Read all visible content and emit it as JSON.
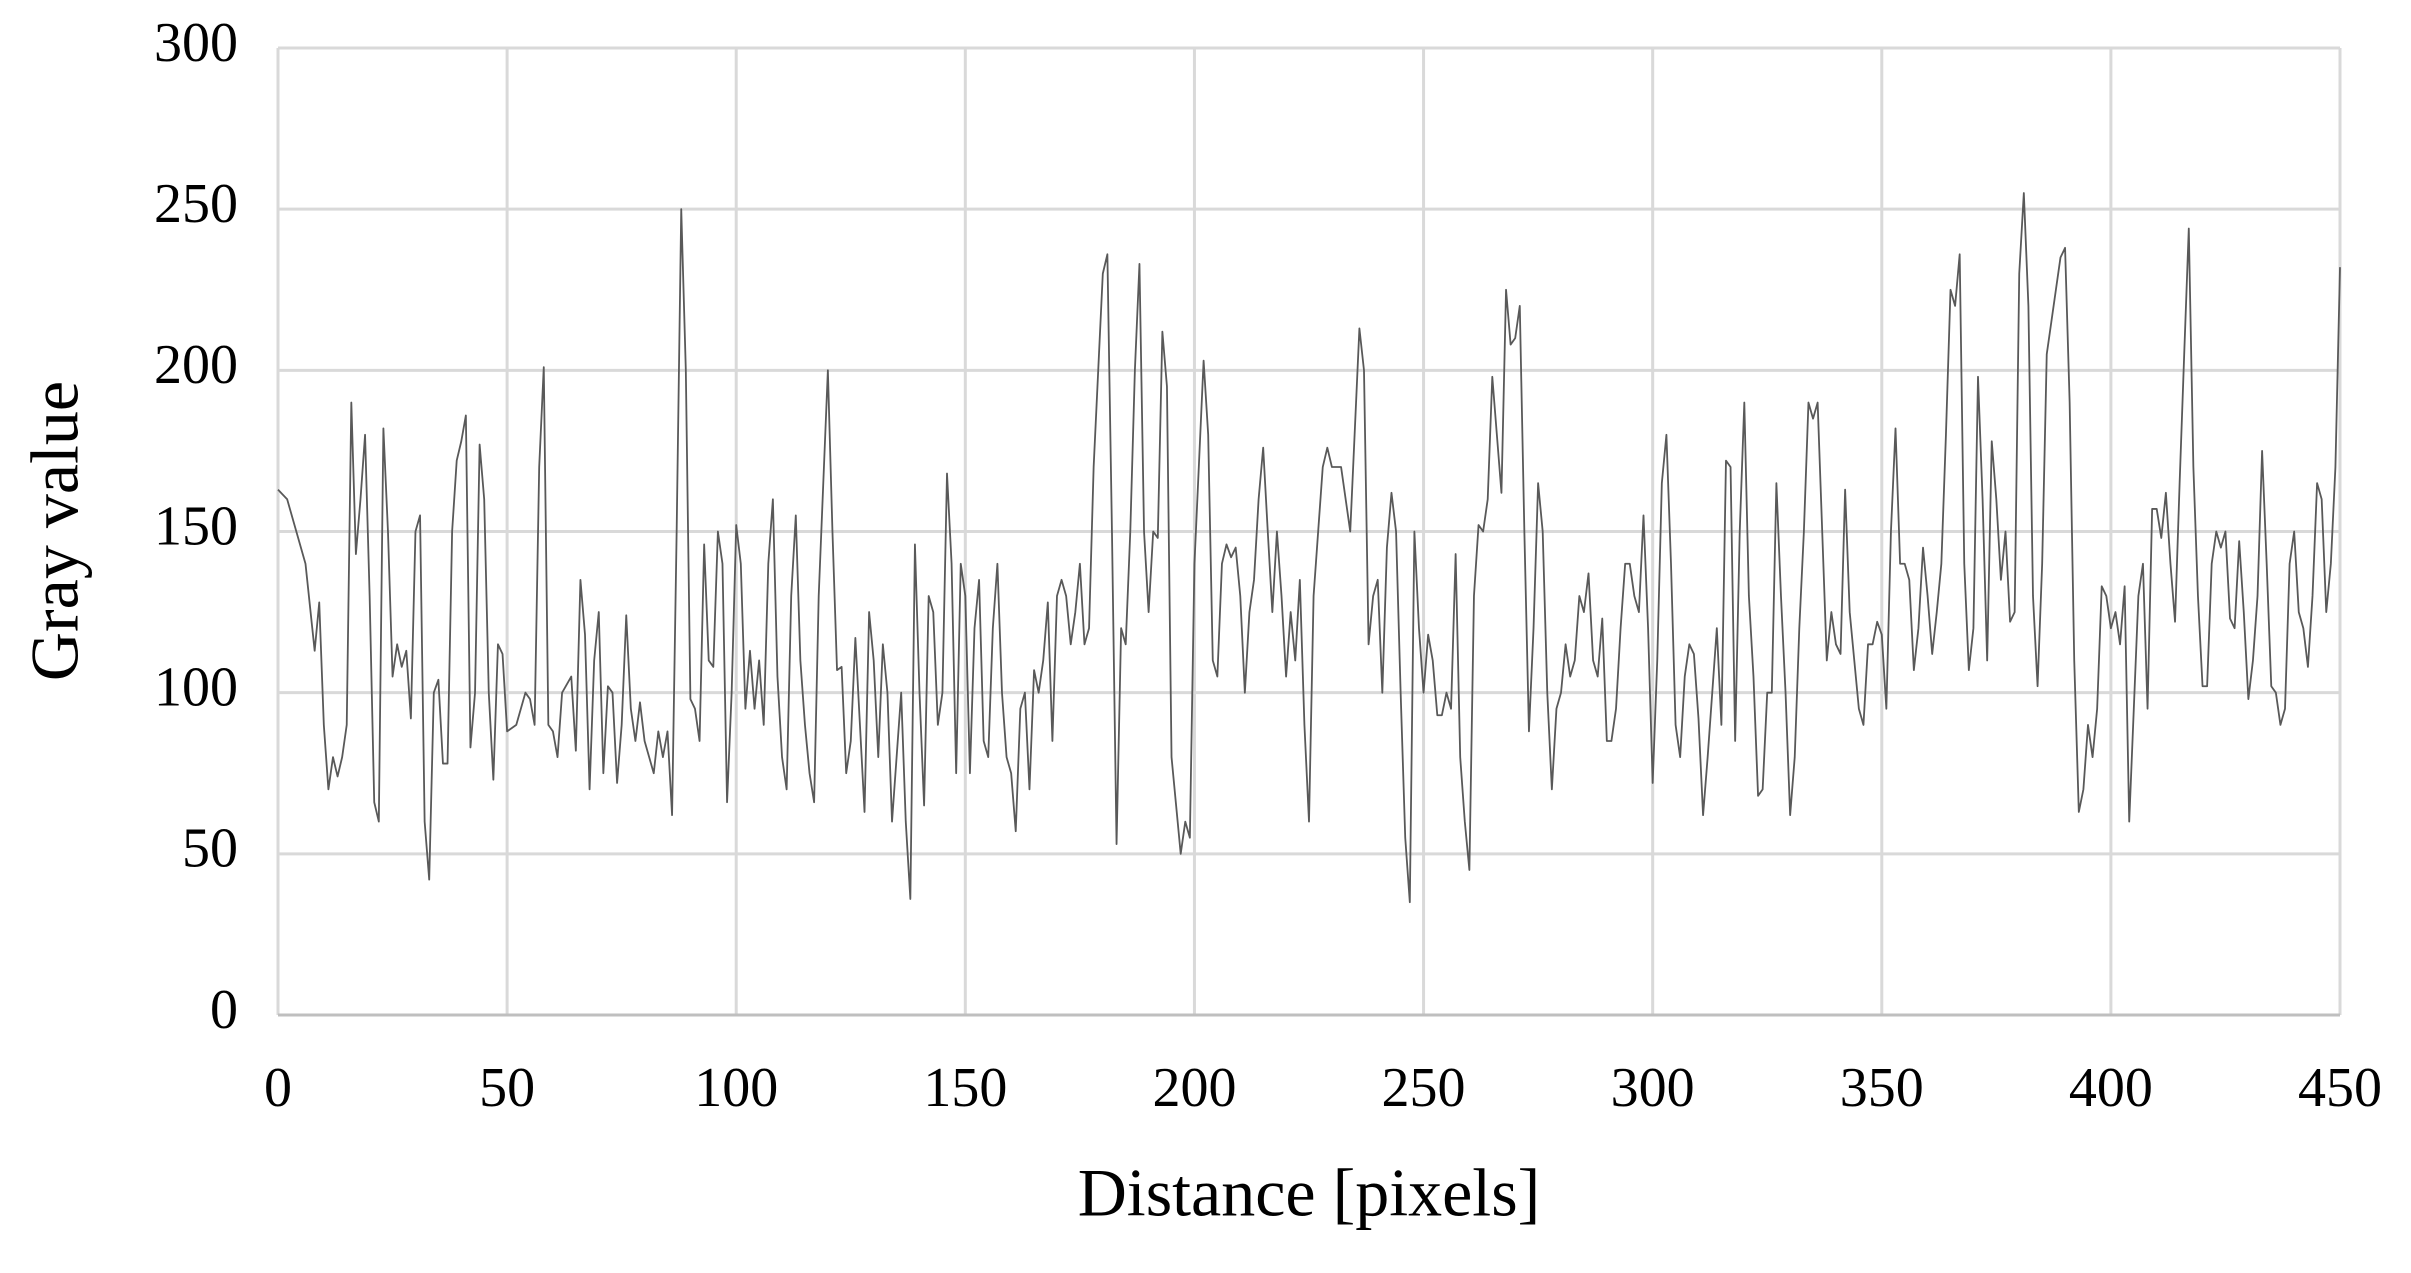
{
  "chart_data": {
    "type": "line",
    "x_label": "Distance [pixels]",
    "y_label": "Gray value",
    "color": "#595959",
    "grid": true,
    "xlim": [
      0,
      450
    ],
    "xticks": [
      0,
      50,
      100,
      150,
      200,
      250,
      300,
      350,
      400,
      450
    ],
    "ylim": [
      0,
      300
    ],
    "yticks": [
      0,
      50,
      100,
      150,
      200,
      250,
      300
    ],
    "x": [
      0,
      2,
      4,
      6,
      8,
      9,
      10,
      11,
      12,
      13,
      14,
      15,
      16,
      17,
      18,
      19,
      20,
      21,
      22,
      23,
      24,
      25,
      26,
      27,
      28,
      29,
      30,
      31,
      32,
      33,
      34,
      35,
      36,
      37,
      38,
      39,
      40,
      41,
      42,
      43,
      44,
      45,
      46,
      47,
      48,
      49,
      50,
      52,
      54,
      55,
      56,
      57,
      58,
      59,
      60,
      61,
      62,
      64,
      65,
      66,
      67,
      68,
      69,
      70,
      71,
      72,
      73,
      74,
      75,
      76,
      77,
      78,
      79,
      80,
      81,
      82,
      83,
      84,
      85,
      86,
      87,
      88,
      89,
      90,
      91,
      92,
      93,
      94,
      95,
      96,
      97,
      98,
      99,
      100,
      101,
      102,
      103,
      104,
      105,
      106,
      107,
      108,
      109,
      110,
      111,
      112,
      113,
      114,
      115,
      116,
      117,
      118,
      119,
      120,
      121,
      122,
      123,
      124,
      125,
      126,
      127,
      128,
      129,
      130,
      131,
      132,
      133,
      134,
      136,
      137,
      138,
      139,
      140,
      141,
      142,
      143,
      144,
      145,
      146,
      147,
      148,
      149,
      150,
      151,
      152,
      153,
      154,
      155,
      156,
      157,
      158,
      159,
      160,
      161,
      162,
      163,
      164,
      165,
      166,
      167,
      168,
      169,
      170,
      171,
      172,
      173,
      174,
      175,
      176,
      177,
      178,
      179,
      180,
      181,
      182,
      183,
      184,
      185,
      186,
      187,
      188,
      189,
      190,
      191,
      192,
      193,
      194,
      195,
      196,
      197,
      198,
      199,
      200,
      202,
      203,
      204,
      205,
      206,
      207,
      208,
      209,
      210,
      211,
      212,
      213,
      214,
      215,
      216,
      217,
      218,
      219,
      220,
      221,
      222,
      223,
      224,
      225,
      226,
      227,
      228,
      229,
      230,
      232,
      234,
      236,
      237,
      238,
      239,
      240,
      241,
      242,
      243,
      244,
      245,
      246,
      247,
      248,
      249,
      250,
      251,
      252,
      253,
      254,
      255,
      256,
      257,
      258,
      259,
      260,
      261,
      262,
      263,
      264,
      265,
      266,
      267,
      268,
      269,
      270,
      271,
      272,
      273,
      274,
      275,
      276,
      277,
      278,
      279,
      280,
      281,
      282,
      283,
      284,
      285,
      286,
      287,
      288,
      289,
      290,
      291,
      292,
      293,
      294,
      295,
      296,
      297,
      298,
      299,
      300,
      301,
      302,
      303,
      304,
      305,
      306,
      307,
      308,
      309,
      310,
      311,
      312,
      313,
      314,
      315,
      316,
      317,
      318,
      319,
      320,
      321,
      322,
      323,
      324,
      325,
      326,
      327,
      328,
      329,
      330,
      331,
      332,
      333,
      334,
      335,
      336,
      337,
      338,
      339,
      340,
      341,
      342,
      343,
      344,
      345,
      346,
      347,
      348,
      349,
      350,
      351,
      352,
      353,
      354,
      355,
      356,
      357,
      358,
      359,
      360,
      361,
      362,
      363,
      364,
      365,
      366,
      367,
      368,
      369,
      370,
      371,
      372,
      373,
      374,
      375,
      376,
      377,
      378,
      379,
      380,
      381,
      382,
      383,
      384,
      385,
      386,
      387,
      388,
      389,
      390,
      391,
      392,
      393,
      394,
      395,
      396,
      397,
      398,
      399,
      400,
      401,
      402,
      403,
      404,
      405,
      406,
      407,
      408,
      409,
      410,
      411,
      412,
      413,
      414,
      415,
      416,
      417,
      418,
      419,
      420,
      421,
      422,
      423,
      424,
      425,
      426,
      427,
      428,
      429,
      430,
      431,
      432,
      433,
      434,
      435,
      436,
      437,
      438,
      439,
      440,
      441,
      442,
      443,
      444,
      445,
      446,
      447,
      448,
      449,
      450
    ],
    "values": [
      163,
      160,
      150,
      140,
      113,
      128,
      90,
      70,
      80,
      74,
      80,
      90,
      190,
      143,
      160,
      180,
      130,
      66,
      60,
      182,
      150,
      105,
      115,
      108,
      113,
      92,
      150,
      155,
      60,
      42,
      100,
      104,
      78,
      78,
      150,
      172,
      178,
      186,
      83,
      100,
      177,
      160,
      100,
      73,
      115,
      112,
      88,
      90,
      100,
      98,
      90,
      170,
      201,
      90,
      88,
      80,
      100,
      105,
      82,
      135,
      118,
      70,
      110,
      125,
      75,
      102,
      100,
      72,
      90,
      124,
      95,
      85,
      97,
      85,
      80,
      75,
      88,
      80,
      88,
      62,
      150,
      250,
      200,
      98,
      95,
      85,
      146,
      110,
      108,
      150,
      140,
      66,
      100,
      152,
      140,
      95,
      113,
      95,
      110,
      90,
      140,
      160,
      105,
      80,
      70,
      130,
      155,
      110,
      90,
      75,
      66,
      130,
      165,
      200,
      150,
      107,
      108,
      75,
      85,
      117,
      90,
      63,
      125,
      110,
      80,
      115,
      100,
      60,
      100,
      60,
      36,
      146,
      100,
      65,
      130,
      125,
      90,
      100,
      168,
      140,
      75,
      140,
      130,
      75,
      120,
      135,
      85,
      80,
      120,
      140,
      100,
      80,
      75,
      57,
      95,
      100,
      70,
      107,
      100,
      110,
      128,
      85,
      130,
      135,
      130,
      115,
      125,
      140,
      115,
      120,
      170,
      200,
      230,
      236,
      150,
      53,
      120,
      115,
      150,
      200,
      233,
      150,
      125,
      150,
      148,
      212,
      195,
      80,
      65,
      50,
      60,
      55,
      140,
      203,
      180,
      110,
      105,
      140,
      146,
      142,
      145,
      130,
      100,
      125,
      135,
      160,
      176,
      150,
      125,
      150,
      130,
      105,
      125,
      110,
      135,
      90,
      60,
      130,
      150,
      170,
      176,
      170,
      170,
      150,
      213,
      200,
      115,
      130,
      135,
      100,
      145,
      162,
      150,
      100,
      55,
      35,
      150,
      120,
      100,
      118,
      110,
      93,
      93,
      100,
      95,
      143,
      80,
      60,
      45,
      130,
      152,
      150,
      160,
      198,
      180,
      162,
      225,
      208,
      210,
      220,
      150,
      88,
      120,
      165,
      150,
      100,
      70,
      95,
      100,
      115,
      105,
      110,
      130,
      125,
      137,
      110,
      105,
      123,
      85,
      85,
      95,
      120,
      140,
      140,
      130,
      125,
      155,
      120,
      72,
      110,
      165,
      180,
      140,
      90,
      80,
      105,
      115,
      112,
      92,
      62,
      80,
      100,
      120,
      90,
      172,
      170,
      85,
      150,
      190,
      130,
      105,
      68,
      70,
      100,
      100,
      165,
      130,
      100,
      62,
      80,
      120,
      150,
      190,
      185,
      190,
      150,
      110,
      125,
      115,
      112,
      163,
      125,
      110,
      95,
      90,
      115,
      115,
      122,
      118,
      95,
      150,
      182,
      140,
      140,
      135,
      107,
      120,
      145,
      130,
      112,
      125,
      140,
      180,
      225,
      220,
      236,
      140,
      107,
      120,
      198,
      160,
      110,
      178,
      160,
      135,
      150,
      122,
      125,
      230,
      255,
      220,
      130,
      102,
      140,
      205,
      215,
      225,
      235,
      238,
      190,
      110,
      63,
      70,
      90,
      80,
      95,
      133,
      130,
      120,
      125,
      115,
      133,
      60,
      95,
      130,
      140,
      95,
      157,
      157,
      148,
      162,
      140,
      122,
      165,
      205,
      244,
      170,
      130,
      102,
      102,
      140,
      150,
      145,
      150,
      123,
      120,
      147,
      125,
      98,
      110,
      130,
      175,
      140,
      102,
      100,
      90,
      95,
      140,
      150,
      125,
      120,
      108,
      130,
      165,
      160,
      125,
      140,
      170,
      232
    ]
  }
}
